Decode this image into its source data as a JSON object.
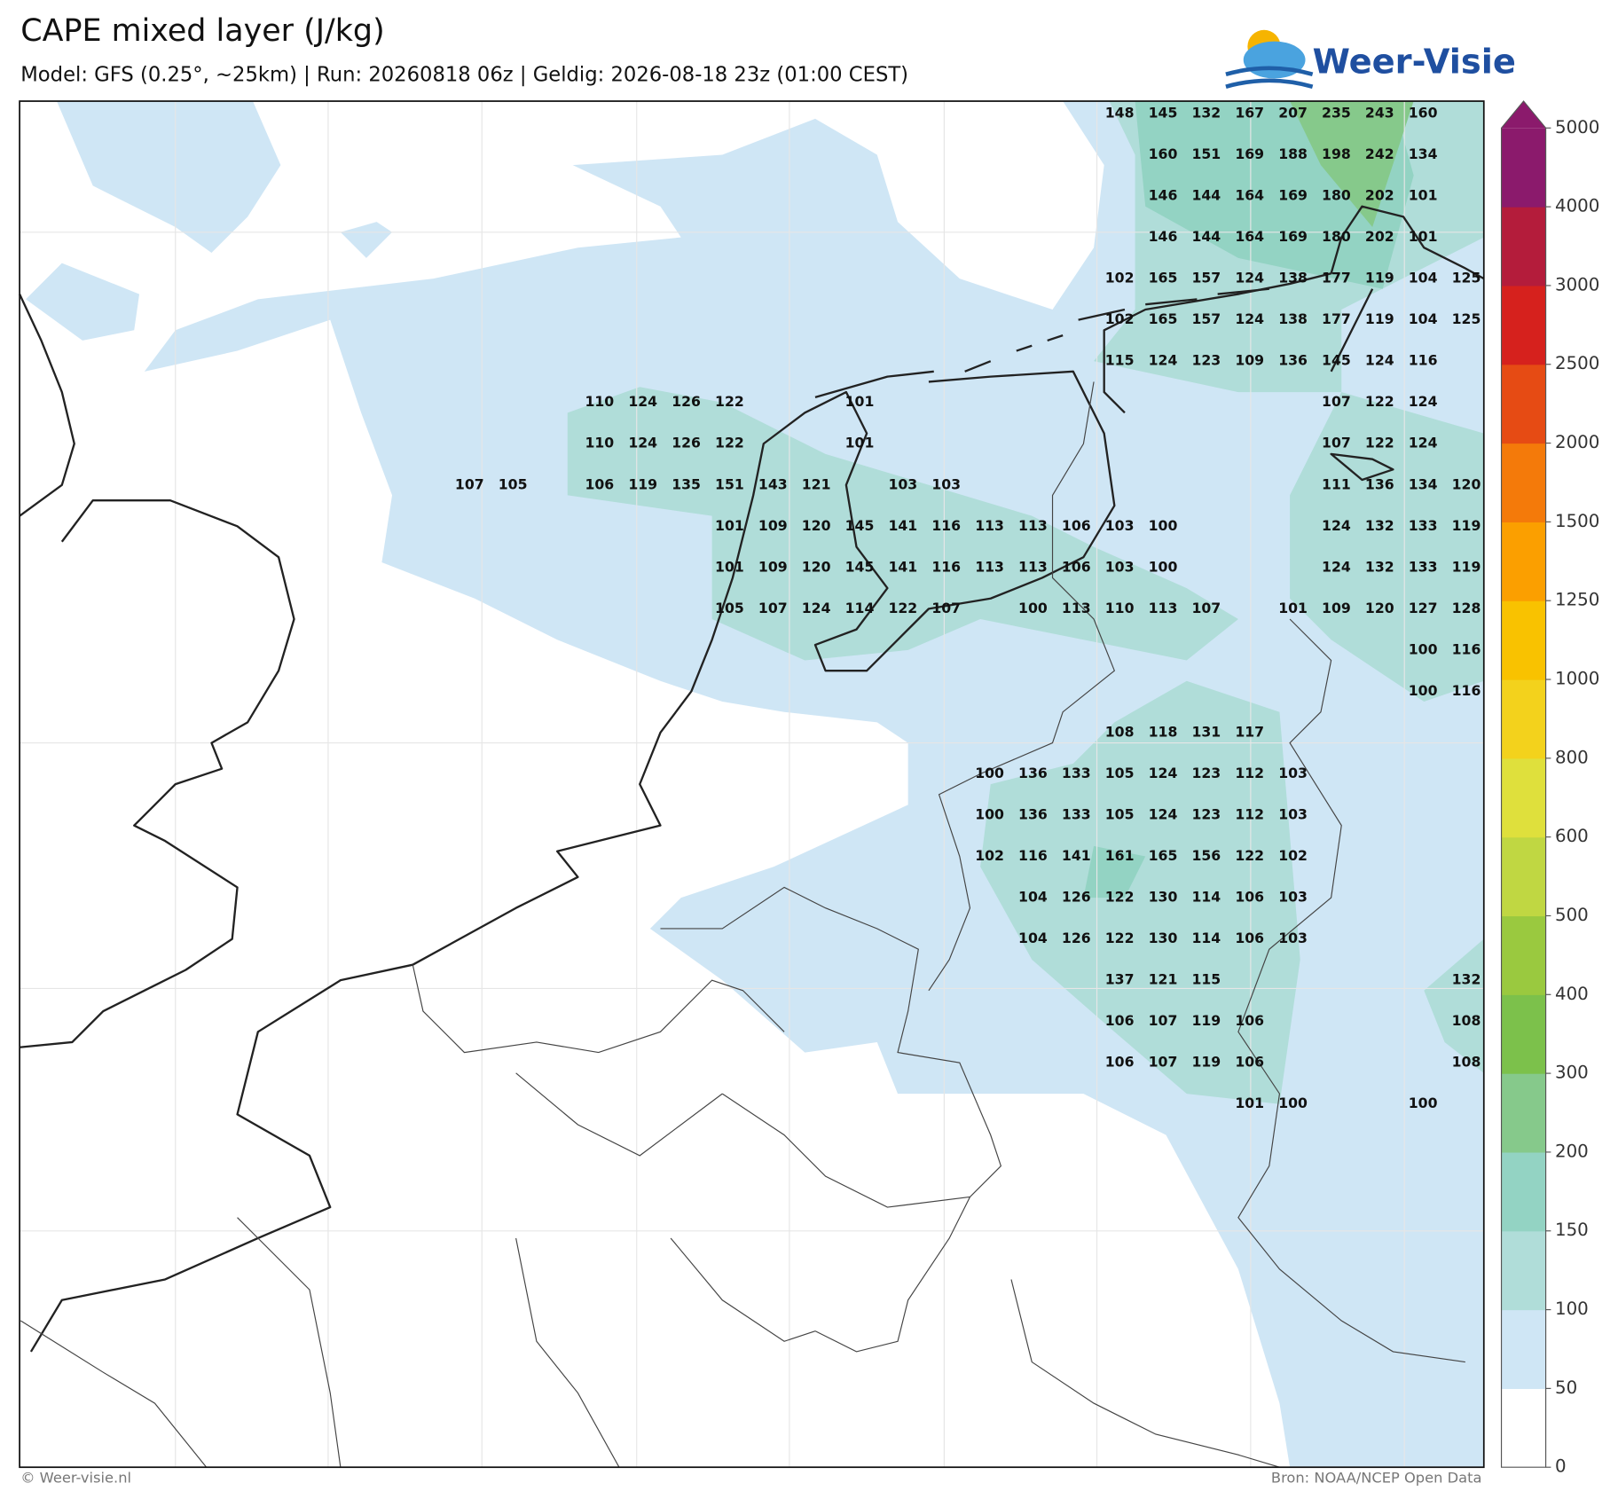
{
  "title": "CAPE mixed layer (J/kg)",
  "subtitle": "Model: GFS (0.25°, ~25km)  |  Run: 20260818 06z  |  Geldig: 2026-08-18 23z (01:00 CEST)",
  "logo": "Weer-Visie",
  "colorbar": {
    "ticks": [
      0,
      50,
      100,
      150,
      200,
      300,
      400,
      500,
      600,
      800,
      1000,
      1250,
      1500,
      2000,
      2500,
      3000,
      4000,
      5000
    ],
    "colors": [
      "#ffffff",
      "#cfe6f5",
      "#b0ddd9",
      "#93d3c3",
      "#86c98b",
      "#7cc14b",
      "#9ac93f",
      "#c0d742",
      "#dfe03c",
      "#f3d21c",
      "#f9c200",
      "#fb9f00",
      "#f47a0a",
      "#e64b14",
      "#d6211d",
      "#b41c3b",
      "#8b1a6c"
    ],
    "extend_color": "#8b1a6c"
  },
  "labels": [
    [
      null,
      null,
      null,
      null,
      null,
      null,
      null,
      null,
      null,
      null,
      null,
      null,
      null,
      null,
      null,
      148,
      145,
      132,
      167,
      207,
      235,
      243,
      160,
      null
    ],
    [
      null,
      null,
      null,
      null,
      null,
      null,
      null,
      null,
      null,
      null,
      null,
      null,
      null,
      null,
      null,
      null,
      160,
      151,
      169,
      188,
      198,
      242,
      134,
      null
    ],
    [
      null,
      null,
      null,
      null,
      null,
      null,
      null,
      null,
      null,
      null,
      null,
      null,
      null,
      null,
      null,
      null,
      146,
      144,
      164,
      169,
      180,
      202,
      101,
      null
    ],
    [
      null,
      null,
      null,
      null,
      null,
      null,
      null,
      null,
      null,
      null,
      null,
      null,
      null,
      null,
      null,
      null,
      146,
      144,
      164,
      169,
      180,
      202,
      101,
      null
    ],
    [
      null,
      null,
      null,
      null,
      null,
      null,
      null,
      null,
      null,
      null,
      null,
      null,
      null,
      null,
      null,
      102,
      165,
      157,
      124,
      138,
      177,
      119,
      104,
      125
    ],
    [
      null,
      null,
      null,
      null,
      null,
      null,
      null,
      null,
      null,
      null,
      null,
      null,
      null,
      null,
      null,
      102,
      165,
      157,
      124,
      138,
      177,
      119,
      104,
      125
    ],
    [
      null,
      null,
      null,
      null,
      null,
      null,
      null,
      null,
      null,
      null,
      null,
      null,
      null,
      null,
      null,
      115,
      124,
      123,
      109,
      136,
      145,
      124,
      116,
      null
    ],
    [
      null,
      null,
      null,
      110,
      124,
      126,
      122,
      null,
      null,
      101,
      null,
      null,
      null,
      null,
      null,
      null,
      null,
      null,
      null,
      null,
      107,
      122,
      124,
      null
    ],
    [
      null,
      null,
      null,
      110,
      124,
      126,
      122,
      null,
      null,
      101,
      null,
      null,
      null,
      null,
      null,
      null,
      null,
      null,
      null,
      null,
      107,
      122,
      124,
      null
    ],
    [
      107,
      105,
      null,
      106,
      119,
      135,
      151,
      143,
      121,
      null,
      103,
      103,
      null,
      null,
      null,
      null,
      null,
      null,
      null,
      null,
      111,
      136,
      134,
      120
    ],
    [
      null,
      null,
      null,
      null,
      null,
      null,
      101,
      109,
      120,
      145,
      141,
      116,
      113,
      113,
      106,
      103,
      100,
      null,
      null,
      null,
      124,
      132,
      133,
      119
    ],
    [
      null,
      null,
      null,
      null,
      null,
      null,
      101,
      109,
      120,
      145,
      141,
      116,
      113,
      113,
      106,
      103,
      100,
      null,
      null,
      null,
      124,
      132,
      133,
      119
    ],
    [
      null,
      null,
      null,
      null,
      null,
      null,
      105,
      107,
      124,
      114,
      122,
      107,
      null,
      100,
      113,
      110,
      113,
      107,
      null,
      101,
      109,
      120,
      127,
      128
    ],
    [
      null,
      null,
      null,
      null,
      null,
      null,
      null,
      null,
      null,
      null,
      null,
      null,
      null,
      null,
      null,
      null,
      null,
      null,
      null,
      null,
      null,
      null,
      100,
      116
    ],
    [
      null,
      null,
      null,
      null,
      null,
      null,
      null,
      null,
      null,
      null,
      null,
      null,
      null,
      null,
      null,
      null,
      null,
      null,
      null,
      null,
      null,
      null,
      100,
      116
    ],
    [
      null,
      null,
      null,
      null,
      null,
      null,
      null,
      null,
      null,
      null,
      null,
      null,
      null,
      null,
      null,
      108,
      118,
      131,
      117,
      null,
      null,
      null,
      null,
      null
    ],
    [
      null,
      null,
      null,
      null,
      null,
      null,
      null,
      null,
      null,
      null,
      null,
      null,
      100,
      136,
      133,
      105,
      124,
      123,
      112,
      103,
      null,
      null,
      null,
      null
    ],
    [
      null,
      null,
      null,
      null,
      null,
      null,
      null,
      null,
      null,
      null,
      null,
      null,
      100,
      136,
      133,
      105,
      124,
      123,
      112,
      103,
      null,
      null,
      null,
      null
    ],
    [
      null,
      null,
      null,
      null,
      null,
      null,
      null,
      null,
      null,
      null,
      null,
      null,
      102,
      116,
      141,
      161,
      165,
      156,
      122,
      102,
      null,
      null,
      null,
      null
    ],
    [
      null,
      null,
      null,
      null,
      null,
      null,
      null,
      null,
      null,
      null,
      null,
      null,
      null,
      104,
      126,
      122,
      130,
      114,
      106,
      103,
      null,
      null,
      null,
      null
    ],
    [
      null,
      null,
      null,
      null,
      null,
      null,
      null,
      null,
      null,
      null,
      null,
      null,
      null,
      104,
      126,
      122,
      130,
      114,
      106,
      103,
      null,
      null,
      null,
      null
    ],
    [
      null,
      null,
      null,
      null,
      null,
      null,
      null,
      null,
      null,
      null,
      null,
      null,
      null,
      null,
      null,
      137,
      121,
      115,
      null,
      null,
      null,
      null,
      null,
      132
    ],
    [
      null,
      null,
      null,
      null,
      null,
      null,
      null,
      null,
      null,
      null,
      null,
      null,
      null,
      null,
      null,
      106,
      107,
      119,
      106,
      null,
      null,
      null,
      null,
      108
    ],
    [
      null,
      null,
      null,
      null,
      null,
      null,
      null,
      null,
      null,
      null,
      null,
      null,
      null,
      null,
      null,
      106,
      107,
      119,
      106,
      null,
      null,
      null,
      null,
      108
    ],
    [
      null,
      null,
      null,
      null,
      null,
      null,
      null,
      null,
      null,
      null,
      null,
      null,
      null,
      null,
      null,
      null,
      null,
      null,
      101,
      100,
      null,
      null,
      100,
      null
    ]
  ],
  "footer": {
    "left": "© Weer-visie.nl",
    "right": "Bron: NOAA/NCEP Open Data"
  }
}
